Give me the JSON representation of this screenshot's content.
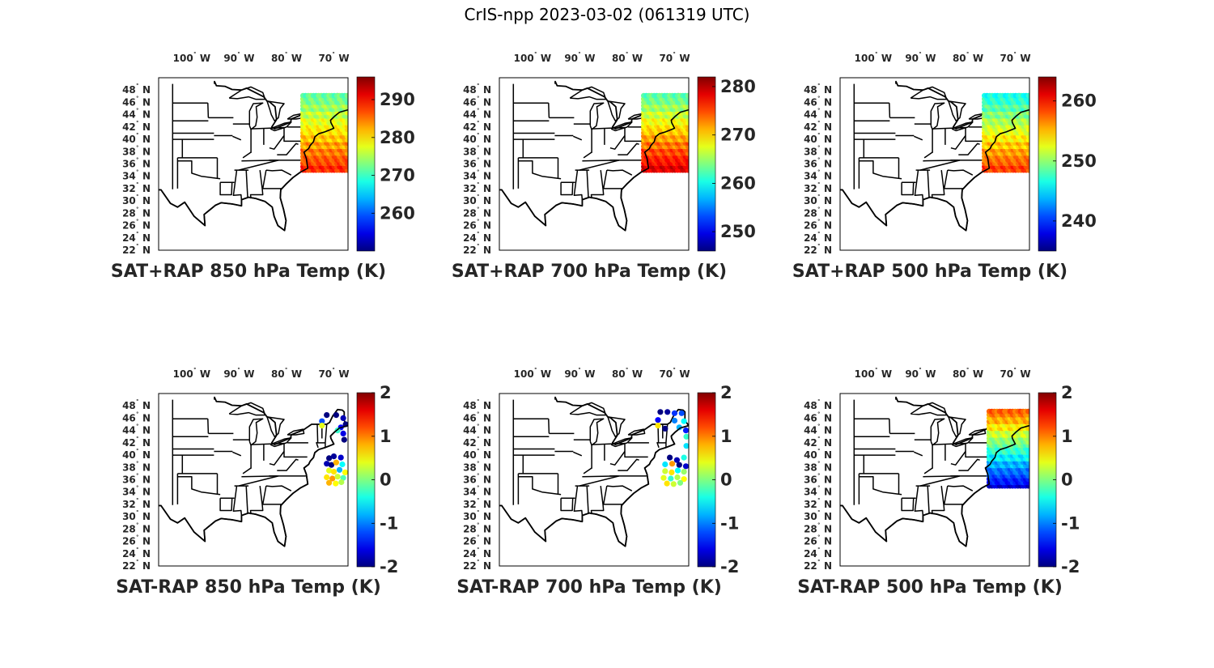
{
  "figure": {
    "title": "CrIS-npp 2023-03-02 (061319 UTC)"
  },
  "colors": {
    "colormap": "jet",
    "border": "#000000",
    "text": "#262626"
  },
  "chart_data": [
    {
      "type": "scatter",
      "title": "SAT+RAP 850 hPa Temp (K)",
      "lon_ticks": [
        -100,
        -90,
        -80,
        -70
      ],
      "lat_ticks": [
        22,
        24,
        26,
        28,
        30,
        32,
        34,
        36,
        38,
        40,
        42,
        44,
        46,
        48
      ],
      "xlim": [
        -107,
        -67
      ],
      "ylim": [
        22,
        50
      ],
      "colorbar": {
        "range": [
          250,
          296
        ],
        "ticks": [
          260,
          270,
          280,
          290
        ]
      },
      "swath": {
        "lon": [
          -76.5,
          -67
        ],
        "lat": [
          35,
          47.5
        ],
        "value_south": 289,
        "value_north": 271
      }
    },
    {
      "type": "scatter",
      "title": "SAT+RAP 700 hPa Temp (K)",
      "lon_ticks": [
        -100,
        -90,
        -80,
        -70
      ],
      "lat_ticks": [
        22,
        24,
        26,
        28,
        30,
        32,
        34,
        36,
        38,
        40,
        42,
        44,
        46,
        48
      ],
      "xlim": [
        -107,
        -67
      ],
      "ylim": [
        22,
        50
      ],
      "colorbar": {
        "range": [
          246,
          282
        ],
        "ticks": [
          250,
          260,
          270,
          280
        ]
      },
      "swath": {
        "lon": [
          -76.5,
          -67
        ],
        "lat": [
          35,
          47.5
        ],
        "value_south": 279,
        "value_north": 262
      }
    },
    {
      "type": "scatter",
      "title": "SAT+RAP 500 hPa Temp (K)",
      "lon_ticks": [
        -100,
        -90,
        -80,
        -70
      ],
      "lat_ticks": [
        22,
        24,
        26,
        28,
        30,
        32,
        34,
        36,
        38,
        40,
        42,
        44,
        46,
        48
      ],
      "xlim": [
        -107,
        -67
      ],
      "ylim": [
        22,
        50
      ],
      "colorbar": {
        "range": [
          235,
          264
        ],
        "ticks": [
          240,
          250,
          260
        ]
      },
      "swath": {
        "lon": [
          -76.5,
          -67
        ],
        "lat": [
          35,
          47.5
        ],
        "value_south": 259,
        "value_north": 246
      }
    },
    {
      "type": "scatter",
      "title": "SAT-RAP 850 hPa Temp (K)",
      "lon_ticks": [
        -100,
        -90,
        -80,
        -70
      ],
      "lat_ticks": [
        22,
        24,
        26,
        28,
        30,
        32,
        34,
        36,
        38,
        40,
        42,
        44,
        46,
        48
      ],
      "xlim": [
        -107,
        -67
      ],
      "ylim": [
        22,
        50
      ],
      "colorbar": {
        "range": [
          -2,
          2
        ],
        "ticks": [
          2,
          1,
          0,
          -1,
          -2
        ]
      },
      "points": [
        [
          -71.5,
          46.5,
          -2
        ],
        [
          -69.5,
          46.5,
          -2
        ],
        [
          -68,
          46,
          -1.8
        ],
        [
          -72.5,
          45.5,
          -1.2
        ],
        [
          -72.5,
          44.8,
          0.4
        ],
        [
          -68.5,
          44.5,
          -1.5
        ],
        [
          -67.5,
          45,
          -2
        ],
        [
          -69.2,
          44,
          -0.3
        ],
        [
          -68,
          43.5,
          -1.6
        ],
        [
          -67.8,
          42.5,
          -2
        ],
        [
          -71,
          39.5,
          -2
        ],
        [
          -70,
          39.8,
          -1.9
        ],
        [
          -68.5,
          39.6,
          -1.7
        ],
        [
          -71.5,
          38.6,
          -1.8
        ],
        [
          -70.5,
          38.4,
          -2
        ],
        [
          -69.5,
          38.8,
          0.8
        ],
        [
          -68.2,
          38.5,
          -0.5
        ],
        [
          -71,
          37.5,
          0.4
        ],
        [
          -70,
          37.3,
          0.6
        ],
        [
          -68.8,
          37.6,
          -0.8
        ],
        [
          -67.6,
          37.2,
          0.5
        ],
        [
          -71.5,
          36.4,
          0.6
        ],
        [
          -70.3,
          36.2,
          0.9
        ],
        [
          -69.2,
          36.5,
          0.3
        ],
        [
          -68,
          36.3,
          -0.2
        ],
        [
          -71,
          35.5,
          0.8
        ],
        [
          -69.6,
          35.4,
          0.5
        ],
        [
          -68.4,
          35.6,
          0.2
        ]
      ]
    },
    {
      "type": "scatter",
      "title": "SAT-RAP 700 hPa Temp (K)",
      "lon_ticks": [
        -100,
        -90,
        -80,
        -70
      ],
      "lat_ticks": [
        22,
        24,
        26,
        28,
        30,
        32,
        34,
        36,
        38,
        40,
        42,
        44,
        46,
        48
      ],
      "xlim": [
        -107,
        -67
      ],
      "ylim": [
        22,
        50
      ],
      "colorbar": {
        "range": [
          -2,
          2
        ],
        "ticks": [
          2,
          1,
          0,
          -1,
          -2
        ]
      },
      "points": [
        [
          -73,
          47,
          -2
        ],
        [
          -71.5,
          47,
          -1.9
        ],
        [
          -70,
          46.8,
          -1.3
        ],
        [
          -68.5,
          46.8,
          -1.2
        ],
        [
          -73.5,
          45.7,
          -1.5
        ],
        [
          -70,
          45.6,
          -1
        ],
        [
          -68,
          45.5,
          -0.5
        ],
        [
          -73.5,
          44.8,
          0.6
        ],
        [
          -72,
          44.3,
          -2
        ],
        [
          -69,
          44.5,
          -0.8
        ],
        [
          -67.6,
          44,
          -1.4
        ],
        [
          -67.5,
          43,
          -0.3
        ],
        [
          -67.5,
          41.5,
          -0.6
        ],
        [
          -71,
          39.6,
          -2
        ],
        [
          -69.5,
          39.2,
          -1.8
        ],
        [
          -68,
          39.6,
          -0.4
        ],
        [
          -72,
          38.5,
          -0.6
        ],
        [
          -70.5,
          38.6,
          0.9
        ],
        [
          -69,
          38.4,
          -2
        ],
        [
          -67.6,
          38.2,
          -1.7
        ],
        [
          -72,
          37.4,
          0.3
        ],
        [
          -70.6,
          37.2,
          0.6
        ],
        [
          -69.3,
          37.5,
          -0.5
        ],
        [
          -68,
          37.3,
          0.1
        ],
        [
          -72.3,
          36.3,
          0.4
        ],
        [
          -70.8,
          36.2,
          -0.3
        ],
        [
          -69.4,
          36.4,
          0.2
        ],
        [
          -68,
          36.1,
          0.5
        ],
        [
          -71.6,
          35.4,
          0.6
        ],
        [
          -70.2,
          35.3,
          0.3
        ],
        [
          -68.8,
          35.5,
          0
        ]
      ]
    },
    {
      "type": "scatter",
      "title": "SAT-RAP 500 hPa Temp (K)",
      "lon_ticks": [
        -100,
        -90,
        -80,
        -70
      ],
      "lat_ticks": [
        22,
        24,
        26,
        28,
        30,
        32,
        34,
        36,
        38,
        40,
        42,
        44,
        46,
        48
      ],
      "xlim": [
        -107,
        -67
      ],
      "ylim": [
        22,
        50
      ],
      "colorbar": {
        "range": [
          -2,
          2
        ],
        "ticks": [
          2,
          1,
          0,
          -1,
          -2
        ]
      },
      "swath": {
        "lon": [
          -75.5,
          -67
        ],
        "lat": [
          35,
          47.5
        ],
        "value_south": -1.6,
        "value_north": 1.2
      }
    }
  ]
}
